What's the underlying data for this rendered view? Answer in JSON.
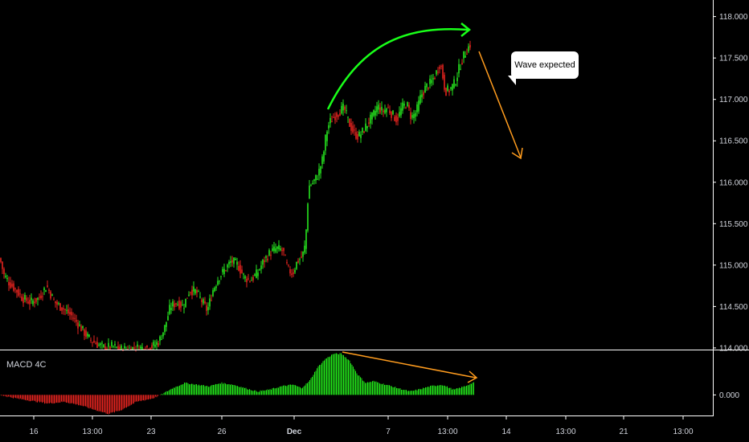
{
  "chart_data": {
    "type": "candlestick",
    "price_axis": {
      "ticks": [
        "118.000",
        "117.500",
        "117.000",
        "116.500",
        "116.000",
        "115.500",
        "115.000",
        "114.500",
        "114.000"
      ],
      "ylim": [
        113.98,
        118.2
      ]
    },
    "macd_axis": {
      "ticks": [
        "0.000"
      ],
      "ylim": [
        -0.12,
        0.26
      ]
    },
    "time_axis": {
      "ticks": [
        "16",
        "13:00",
        "23",
        "26",
        "Dec",
        "7",
        "13:00",
        "14",
        "13:00",
        "21",
        "13:00"
      ]
    },
    "macd_label": "MACD 4C",
    "annotation": "Wave expected",
    "price_path": [
      [
        0,
        115.08
      ],
      [
        5,
        114.88
      ],
      [
        12,
        114.78
      ],
      [
        20,
        114.7
      ],
      [
        28,
        114.6
      ],
      [
        38,
        114.55
      ],
      [
        48,
        114.6
      ],
      [
        58,
        114.75
      ],
      [
        68,
        114.55
      ],
      [
        78,
        114.48
      ],
      [
        90,
        114.38
      ],
      [
        100,
        114.25
      ],
      [
        110,
        114.12
      ],
      [
        120,
        114.05
      ],
      [
        130,
        114.0
      ],
      [
        140,
        114.02
      ],
      [
        150,
        113.98
      ],
      [
        160,
        113.99
      ],
      [
        170,
        114.0
      ],
      [
        180,
        114.0
      ],
      [
        190,
        114.02
      ],
      [
        198,
        114.08
      ],
      [
        205,
        114.25
      ],
      [
        212,
        114.5
      ],
      [
        220,
        114.55
      ],
      [
        228,
        114.5
      ],
      [
        236,
        114.7
      ],
      [
        244,
        114.68
      ],
      [
        252,
        114.55
      ],
      [
        258,
        114.45
      ],
      [
        265,
        114.7
      ],
      [
        272,
        114.85
      ],
      [
        280,
        114.95
      ],
      [
        288,
        115.05
      ],
      [
        296,
        115.0
      ],
      [
        304,
        114.85
      ],
      [
        312,
        114.82
      ],
      [
        320,
        114.9
      ],
      [
        328,
        115.05
      ],
      [
        336,
        115.15
      ],
      [
        344,
        115.2
      ],
      [
        352,
        115.18
      ],
      [
        358,
        114.95
      ],
      [
        364,
        114.9
      ],
      [
        370,
        115.05
      ],
      [
        376,
        115.1
      ],
      [
        380,
        115.25
      ],
      [
        384,
        115.95
      ],
      [
        390,
        116.0
      ],
      [
        396,
        116.1
      ],
      [
        402,
        116.3
      ],
      [
        406,
        116.6
      ],
      [
        410,
        116.72
      ],
      [
        416,
        116.8
      ],
      [
        422,
        116.85
      ],
      [
        428,
        116.9
      ],
      [
        434,
        116.72
      ],
      [
        440,
        116.6
      ],
      [
        446,
        116.55
      ],
      [
        452,
        116.62
      ],
      [
        458,
        116.72
      ],
      [
        464,
        116.8
      ],
      [
        470,
        116.92
      ],
      [
        476,
        116.85
      ],
      [
        482,
        116.9
      ],
      [
        488,
        116.82
      ],
      [
        494,
        116.75
      ],
      [
        500,
        116.9
      ],
      [
        506,
        116.95
      ],
      [
        512,
        116.78
      ],
      [
        518,
        116.85
      ],
      [
        524,
        117.05
      ],
      [
        530,
        117.15
      ],
      [
        536,
        117.2
      ],
      [
        542,
        117.3
      ],
      [
        548,
        117.45
      ],
      [
        554,
        117.1
      ],
      [
        560,
        117.12
      ],
      [
        566,
        117.2
      ],
      [
        572,
        117.4
      ],
      [
        578,
        117.55
      ],
      [
        586,
        117.68
      ]
    ],
    "macd_path": [
      [
        0,
        0.0
      ],
      [
        20,
        -0.02
      ],
      [
        40,
        -0.035
      ],
      [
        60,
        -0.05
      ],
      [
        80,
        -0.04
      ],
      [
        100,
        -0.06
      ],
      [
        120,
        -0.09
      ],
      [
        135,
        -0.11
      ],
      [
        150,
        -0.09
      ],
      [
        170,
        -0.04
      ],
      [
        190,
        -0.02
      ],
      [
        200,
        0.0
      ],
      [
        215,
        0.04
      ],
      [
        230,
        0.07
      ],
      [
        245,
        0.06
      ],
      [
        260,
        0.05
      ],
      [
        275,
        0.07
      ],
      [
        290,
        0.06
      ],
      [
        305,
        0.04
      ],
      [
        320,
        0.02
      ],
      [
        335,
        0.03
      ],
      [
        350,
        0.05
      ],
      [
        365,
        0.06
      ],
      [
        375,
        0.04
      ],
      [
        385,
        0.08
      ],
      [
        395,
        0.16
      ],
      [
        405,
        0.21
      ],
      [
        415,
        0.24
      ],
      [
        425,
        0.24
      ],
      [
        435,
        0.2
      ],
      [
        445,
        0.12
      ],
      [
        455,
        0.07
      ],
      [
        465,
        0.08
      ],
      [
        480,
        0.06
      ],
      [
        495,
        0.04
      ],
      [
        510,
        0.02
      ],
      [
        520,
        0.03
      ],
      [
        535,
        0.05
      ],
      [
        550,
        0.06
      ],
      [
        565,
        0.03
      ],
      [
        578,
        0.05
      ],
      [
        588,
        0.07
      ]
    ],
    "colors": {
      "up": "#26e51f",
      "down": "#e5241f",
      "macd_up": "#22e51a",
      "macd_down": "#e5241f",
      "arc": "#19ff19",
      "arrow": "#ff9c1e",
      "grid": "#ffffff"
    }
  }
}
